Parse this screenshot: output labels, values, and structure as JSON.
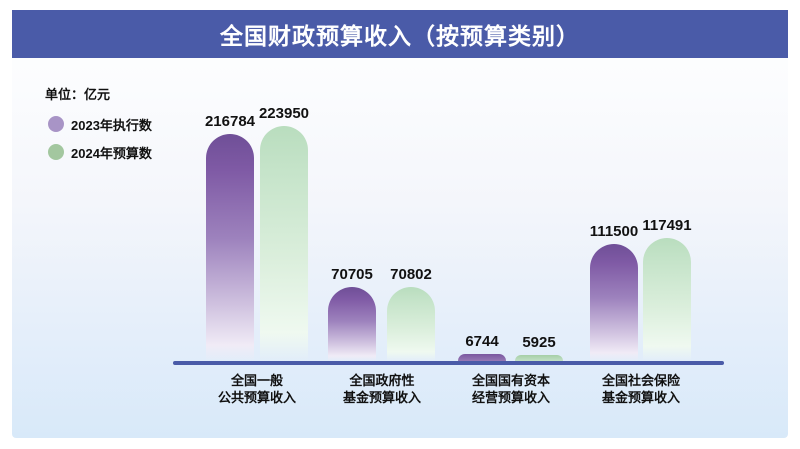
{
  "header": {
    "title": "全国财政预算收入（按预算类别）"
  },
  "unit_label": "单位：亿元",
  "legend": {
    "items": [
      {
        "label": "2023年执行数",
        "color": "#a894c6"
      },
      {
        "label": "2024年预算数",
        "color": "#a3c79f"
      }
    ]
  },
  "chart_data": {
    "type": "bar",
    "title": "全国财政预算收入（按预算类别）",
    "unit": "亿元",
    "categories": [
      "全国一般公共预算收入",
      "全国政府性基金预算收入",
      "全国国有资本经营预算收入",
      "全国社会保险基金预算收入"
    ],
    "series": [
      {
        "name": "2023年执行数",
        "color": "#7a57a0",
        "values": [
          216784,
          70705,
          6744,
          111500
        ]
      },
      {
        "name": "2024年预算数",
        "color": "#c2e1c6",
        "values": [
          223950,
          70802,
          5925,
          117491
        ]
      }
    ],
    "ylim": [
      0,
      240000
    ],
    "grid": false,
    "legend_position": "top-left",
    "value_labels": true,
    "colors": {
      "banner": "#4a5ba8",
      "axis": "#4a5ba8",
      "background_bottom": "#d8e9f9"
    }
  },
  "category_lines": [
    {
      "line1": "全国一般",
      "line2": "公共预算收入"
    },
    {
      "line1": "全国政府性",
      "line2": "基金预算收入"
    },
    {
      "line1": "全国国有资本",
      "line2": "经营预算收入"
    },
    {
      "line1": "全国社会保险",
      "line2": "基金预算收入"
    }
  ]
}
